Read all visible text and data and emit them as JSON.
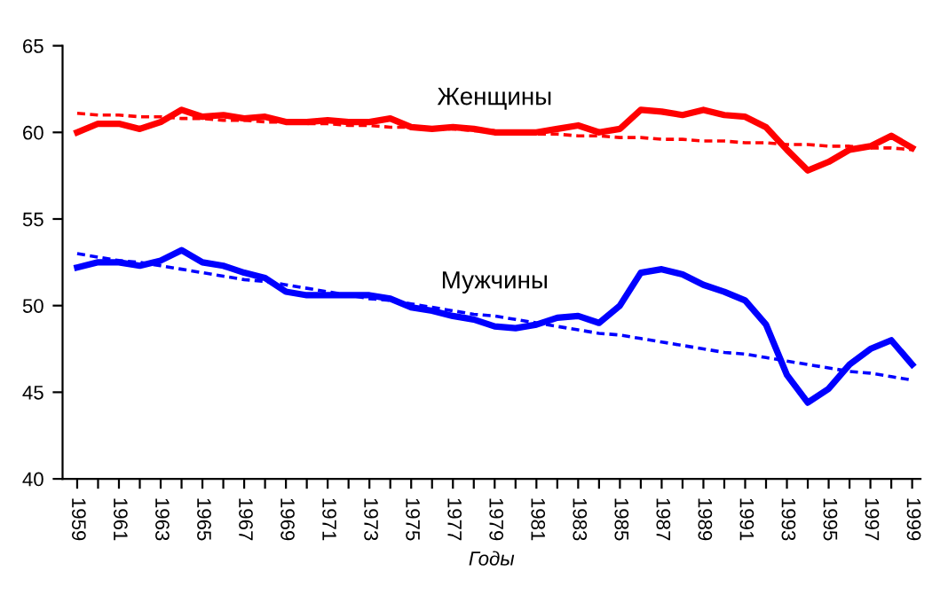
{
  "chart_data": {
    "type": "line",
    "xlabel": "Годы",
    "xlim": [
      1958.3,
      1999.4
    ],
    "ylim": [
      40,
      65
    ],
    "yticks": [
      40,
      45,
      50,
      55,
      60,
      65
    ],
    "xticks": [
      1959,
      {
        "value": 1960,
        "label": null
      },
      1961,
      {
        "value": 1962,
        "label": null
      },
      1963,
      {
        "value": 1964,
        "label": null
      },
      1965,
      {
        "value": 1966,
        "label": null
      },
      1967,
      {
        "value": 1968,
        "label": null
      },
      1969,
      {
        "value": 1970,
        "label": null
      },
      1971,
      {
        "value": 1972,
        "label": null
      },
      1973,
      {
        "value": 1974,
        "label": null
      },
      1975,
      {
        "value": 1976,
        "label": null
      },
      1977,
      {
        "value": 1978,
        "label": null
      },
      1979,
      {
        "value": 1980,
        "label": null
      },
      1981,
      {
        "value": 1982,
        "label": null
      },
      1983,
      {
        "value": 1984,
        "label": null
      },
      1985,
      {
        "value": 1986,
        "label": null
      },
      1987,
      {
        "value": 1988,
        "label": null
      },
      1989,
      {
        "value": 1990,
        "label": null
      },
      1991,
      {
        "value": 1992,
        "label": null
      },
      1993,
      {
        "value": 1994,
        "label": null
      },
      1995,
      {
        "value": 1996,
        "label": null
      },
      1997,
      {
        "value": 1998,
        "label": null
      },
      1999
    ],
    "x": [
      1959,
      1960,
      1961,
      1962,
      1963,
      1964,
      1965,
      1966,
      1967,
      1968,
      1969,
      1970,
      1971,
      1972,
      1973,
      1974,
      1975,
      1976,
      1977,
      1978,
      1979,
      1980,
      1981,
      1982,
      1983,
      1984,
      1985,
      1986,
      1987,
      1988,
      1989,
      1990,
      1991,
      1992,
      1993,
      1994,
      1995,
      1996,
      1997,
      1998,
      1999
    ],
    "grid": false,
    "legend": false,
    "marker": "none",
    "series": [
      {
        "name": "Женщины",
        "color": "#ff0000",
        "line_style": "solid",
        "values": [
          60.0,
          60.5,
          60.5,
          60.2,
          60.6,
          61.3,
          60.9,
          61.0,
          60.8,
          60.9,
          60.6,
          60.6,
          60.7,
          60.6,
          60.6,
          60.8,
          60.3,
          60.2,
          60.3,
          60.2,
          60.0,
          60.0,
          60.0,
          60.2,
          60.4,
          60.0,
          60.2,
          61.3,
          61.2,
          61.0,
          61.3,
          61.0,
          60.9,
          60.3,
          59.0,
          57.8,
          58.3,
          59.0,
          59.2,
          59.8,
          59.1
        ]
      },
      {
        "name": "Мужчины",
        "color": "#0000ff",
        "line_style": "solid",
        "values": [
          52.2,
          52.5,
          52.5,
          52.3,
          52.6,
          53.2,
          52.5,
          52.3,
          51.9,
          51.6,
          50.8,
          50.6,
          50.6,
          50.6,
          50.6,
          50.4,
          49.9,
          49.7,
          49.4,
          49.2,
          48.8,
          48.7,
          48.9,
          49.3,
          49.4,
          49.0,
          50.0,
          51.9,
          52.1,
          51.8,
          51.2,
          50.8,
          50.3,
          48.9,
          46.0,
          44.4,
          45.2,
          46.6,
          47.5,
          48.0,
          46.6
        ]
      },
      {
        "type": "line",
        "color": "#ff0000",
        "line_style": "dashed",
        "values": [
          61.1,
          61.0,
          61.0,
          60.9,
          60.9,
          60.8,
          60.8,
          60.7,
          60.7,
          60.6,
          60.6,
          60.5,
          60.5,
          60.4,
          60.4,
          60.3,
          60.3,
          60.2,
          60.2,
          60.1,
          60.1,
          60.0,
          59.9,
          59.9,
          59.8,
          59.8,
          59.7,
          59.7,
          59.6,
          59.6,
          59.5,
          59.5,
          59.4,
          59.4,
          59.3,
          59.3,
          59.2,
          59.2,
          59.1,
          59.1,
          59.0
        ]
      },
      {
        "type": "line",
        "color": "#0000ff",
        "line_style": "dashed",
        "values": [
          53.0,
          52.8,
          52.6,
          52.5,
          52.3,
          52.1,
          51.9,
          51.7,
          51.5,
          51.4,
          51.2,
          51.0,
          50.8,
          50.6,
          50.4,
          50.3,
          50.1,
          49.9,
          49.7,
          49.5,
          49.4,
          49.2,
          49.0,
          48.8,
          48.6,
          48.4,
          48.3,
          48.1,
          47.9,
          47.7,
          47.5,
          47.3,
          47.2,
          47.0,
          46.8,
          46.6,
          46.4,
          46.2,
          46.1,
          45.9,
          45.7
        ]
      }
    ]
  }
}
